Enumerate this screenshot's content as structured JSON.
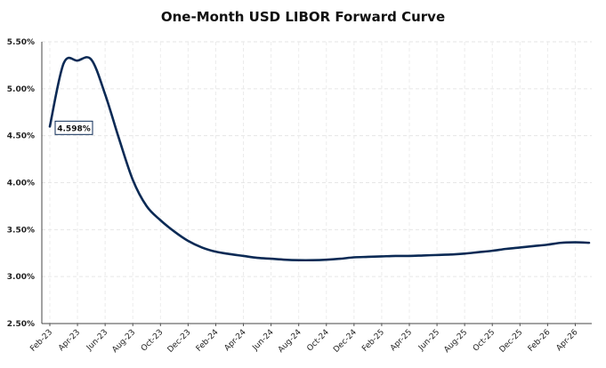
{
  "chart_data": {
    "type": "line",
    "title": "One-Month USD LIBOR Forward Curve",
    "xlabel": "",
    "ylabel": "",
    "ylim": [
      2.5,
      5.5
    ],
    "yticks": [
      "2.50%",
      "3.00%",
      "3.50%",
      "4.00%",
      "4.50%",
      "5.00%",
      "5.50%"
    ],
    "xticks": [
      "Feb-23",
      "Apr-23",
      "Jun-23",
      "Aug-23",
      "Oct-23",
      "Dec-23",
      "Feb-24",
      "Apr-24",
      "Jun-24",
      "Aug-24",
      "Oct-24",
      "Dec-24",
      "Feb-25",
      "Apr-25",
      "Jun-25",
      "Aug-25",
      "Oct-25",
      "Dec-25",
      "Feb-26",
      "Apr-26"
    ],
    "grid": true,
    "line_color": "#0b2a55",
    "annotation": "4.598%",
    "series": [
      {
        "x": [
          "2023-02",
          "2023-03",
          "2023-04",
          "2023-05",
          "2023-06",
          "2023-07",
          "2023-08",
          "2023-09",
          "2023-10",
          "2023-11",
          "2023-12",
          "2024-01",
          "2024-02",
          "2024-03",
          "2024-04",
          "2024-05",
          "2024-06",
          "2024-07",
          "2024-08",
          "2024-09",
          "2024-10",
          "2024-11",
          "2024-12",
          "2025-01",
          "2025-02",
          "2025-03",
          "2025-04",
          "2025-05",
          "2025-06",
          "2025-07",
          "2025-08",
          "2025-09",
          "2025-10",
          "2025-11",
          "2025-12",
          "2026-01",
          "2026-02",
          "2026-03",
          "2026-04",
          "2026-05"
        ],
        "values": [
          4.598,
          5.27,
          5.3,
          5.31,
          4.94,
          4.47,
          4.03,
          3.75,
          3.6,
          3.48,
          3.38,
          3.31,
          3.265,
          3.24,
          3.22,
          3.2,
          3.19,
          3.18,
          3.175,
          3.175,
          3.18,
          3.19,
          3.205,
          3.21,
          3.215,
          3.22,
          3.22,
          3.225,
          3.23,
          3.235,
          3.245,
          3.26,
          3.275,
          3.295,
          3.31,
          3.325,
          3.34,
          3.36,
          3.365,
          3.36
        ]
      }
    ]
  }
}
